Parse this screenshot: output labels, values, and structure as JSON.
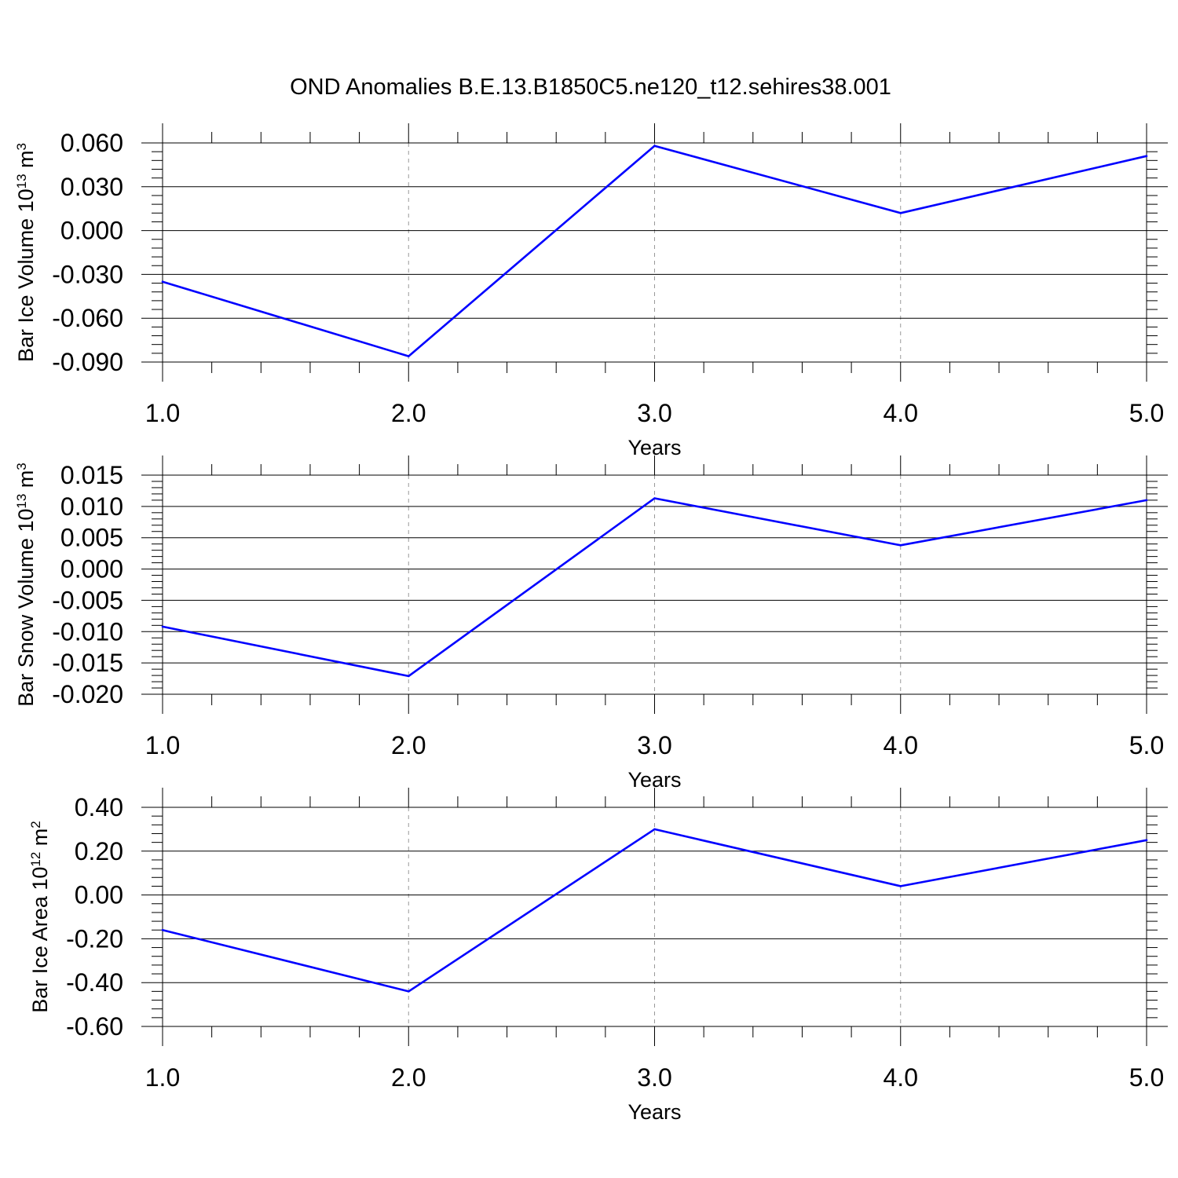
{
  "title": "OND Anomalies B.E.13.B1850C5.ne120_t12.sehires38.001",
  "chart_data": [
    {
      "type": "line",
      "xlabel": "Years",
      "ylabel_main": "Bar Ice Volume 10",
      "ylabel_exp": "13",
      "ylabel_unit": " m",
      "ylabel_unit_exp": "3",
      "x": [
        1.0,
        2.0,
        3.0,
        4.0,
        5.0
      ],
      "xlim": [
        1.0,
        5.0
      ],
      "xticks": [
        "1.0",
        "2.0",
        "3.0",
        "4.0",
        "5.0"
      ],
      "ylim": [
        -0.09,
        0.06
      ],
      "yticks": [
        -0.09,
        -0.06,
        -0.03,
        0.0,
        0.03,
        0.06
      ],
      "ytick_labels": [
        "-0.090",
        "-0.060",
        "-0.030",
        "0.000",
        "0.030",
        "0.060"
      ],
      "series": [
        {
          "name": "Bar Ice Volume",
          "color": "#0000ff",
          "values": [
            -0.035,
            -0.086,
            0.058,
            0.012,
            0.051
          ]
        }
      ]
    },
    {
      "type": "line",
      "xlabel": "Years",
      "ylabel_main": "Bar Snow Volume 10",
      "ylabel_exp": "13",
      "ylabel_unit": " m",
      "ylabel_unit_exp": "3",
      "x": [
        1.0,
        2.0,
        3.0,
        4.0,
        5.0
      ],
      "xlim": [
        1.0,
        5.0
      ],
      "xticks": [
        "1.0",
        "2.0",
        "3.0",
        "4.0",
        "5.0"
      ],
      "ylim": [
        -0.02,
        0.015
      ],
      "yticks": [
        -0.02,
        -0.015,
        -0.01,
        -0.005,
        0.0,
        0.005,
        0.01,
        0.015
      ],
      "ytick_labels": [
        "-0.020",
        "-0.015",
        "-0.010",
        "-0.005",
        "0.000",
        "0.005",
        "0.010",
        "0.015"
      ],
      "series": [
        {
          "name": "Bar Snow Volume",
          "color": "#0000ff",
          "values": [
            -0.0092,
            -0.0171,
            0.0113,
            0.0038,
            0.011
          ]
        }
      ]
    },
    {
      "type": "line",
      "xlabel": "Years",
      "ylabel_main": "Bar Ice Area 10",
      "ylabel_exp": "12",
      "ylabel_unit": " m",
      "ylabel_unit_exp": "2",
      "x": [
        1.0,
        2.0,
        3.0,
        4.0,
        5.0
      ],
      "xlim": [
        1.0,
        5.0
      ],
      "xticks": [
        "1.0",
        "2.0",
        "3.0",
        "4.0",
        "5.0"
      ],
      "ylim": [
        -0.6,
        0.4
      ],
      "yticks": [
        -0.6,
        -0.4,
        -0.2,
        0.0,
        0.2,
        0.4
      ],
      "ytick_labels": [
        "-0.60",
        "-0.40",
        "-0.20",
        "0.00",
        "0.20",
        "0.40"
      ],
      "series": [
        {
          "name": "Bar Ice Area",
          "color": "#0000ff",
          "values": [
            -0.16,
            -0.44,
            0.3,
            0.04,
            0.25
          ]
        }
      ]
    }
  ]
}
